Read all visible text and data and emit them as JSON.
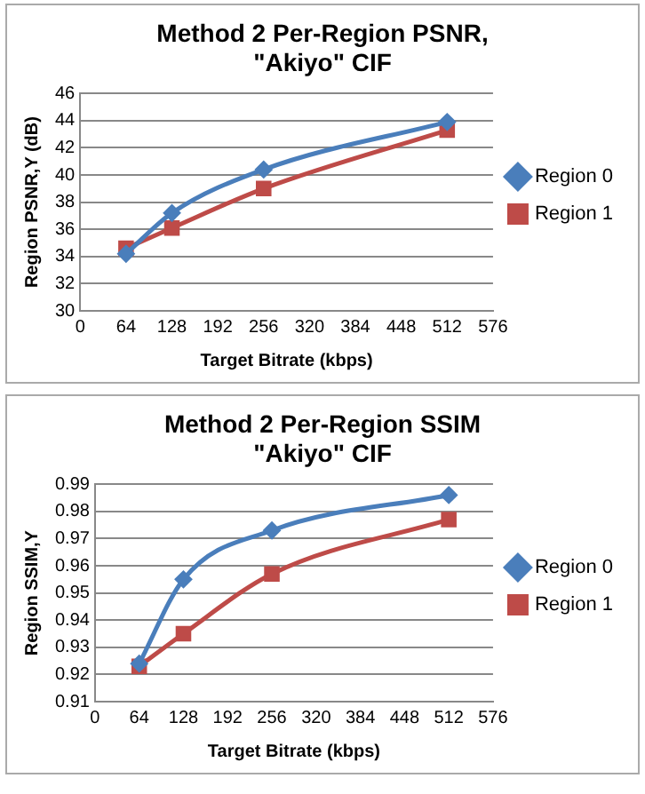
{
  "chart_data": [
    {
      "type": "line",
      "title": "Method 2 Per-Region PSNR,\n\"Akiyo\" CIF",
      "xlabel": "Target Bitrate (kbps)",
      "ylabel": "Region PSNR,Y (dB)",
      "x": [
        64,
        128,
        256,
        512
      ],
      "series": [
        {
          "name": "Region 0",
          "color": "#4a7ebb",
          "marker": "diamond",
          "values": [
            34.2,
            37.2,
            40.4,
            43.9
          ]
        },
        {
          "name": "Region 1",
          "color": "#be4b48",
          "marker": "square",
          "values": [
            34.6,
            36.1,
            39.0,
            43.3
          ]
        }
      ],
      "xlim": [
        0,
        576
      ],
      "xticks": [
        0,
        64,
        128,
        192,
        256,
        320,
        384,
        448,
        512,
        576
      ],
      "ylim": [
        30,
        46
      ],
      "yticks": [
        30,
        32,
        34,
        36,
        38,
        40,
        42,
        44,
        46
      ],
      "grid": "y",
      "legend": "right"
    },
    {
      "type": "line",
      "title": "Method 2 Per-Region SSIM\n\"Akiyo\" CIF",
      "xlabel": "Target Bitrate (kbps)",
      "ylabel": "Region SSIM,Y",
      "x": [
        64,
        128,
        256,
        512
      ],
      "series": [
        {
          "name": "Region 0",
          "color": "#4a7ebb",
          "marker": "diamond",
          "values": [
            0.924,
            0.955,
            0.973,
            0.986
          ]
        },
        {
          "name": "Region 1",
          "color": "#be4b48",
          "marker": "square",
          "values": [
            0.923,
            0.935,
            0.957,
            0.977
          ]
        }
      ],
      "xlim": [
        0,
        576
      ],
      "xticks": [
        0,
        64,
        128,
        192,
        256,
        320,
        384,
        448,
        512,
        576
      ],
      "ylim": [
        0.91,
        0.99
      ],
      "yticks": [
        0.91,
        0.92,
        0.93,
        0.94,
        0.95,
        0.96,
        0.97,
        0.98,
        0.99
      ],
      "grid": "y",
      "legend": "right"
    }
  ]
}
